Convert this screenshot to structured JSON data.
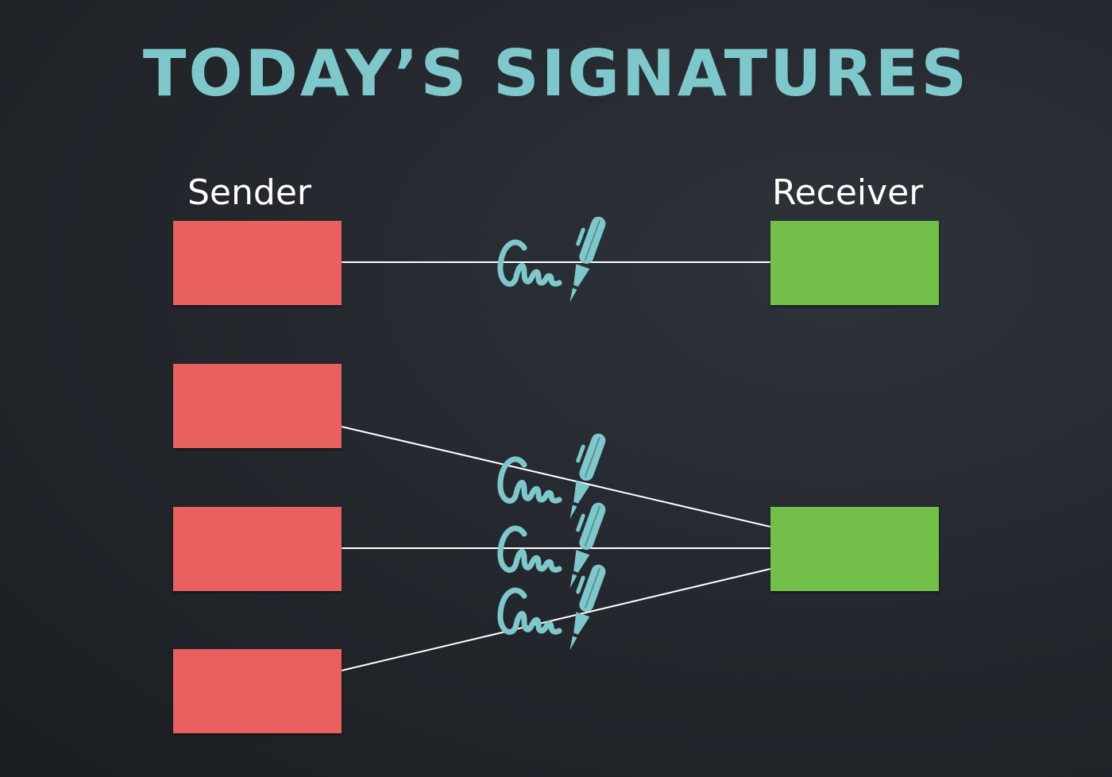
{
  "title": "TODAY’S SIGNATURES",
  "labels": {
    "sender": "Sender",
    "receiver": "Receiver"
  },
  "colors": {
    "title": "#7ec8cc",
    "label": "#ffffff",
    "sender_box": "#e86060",
    "receiver_box": "#72bf4a",
    "line": "#ffffff",
    "signature_icon": "#7ec8cc"
  },
  "icons": {
    "signature": "signature-pen-icon"
  }
}
